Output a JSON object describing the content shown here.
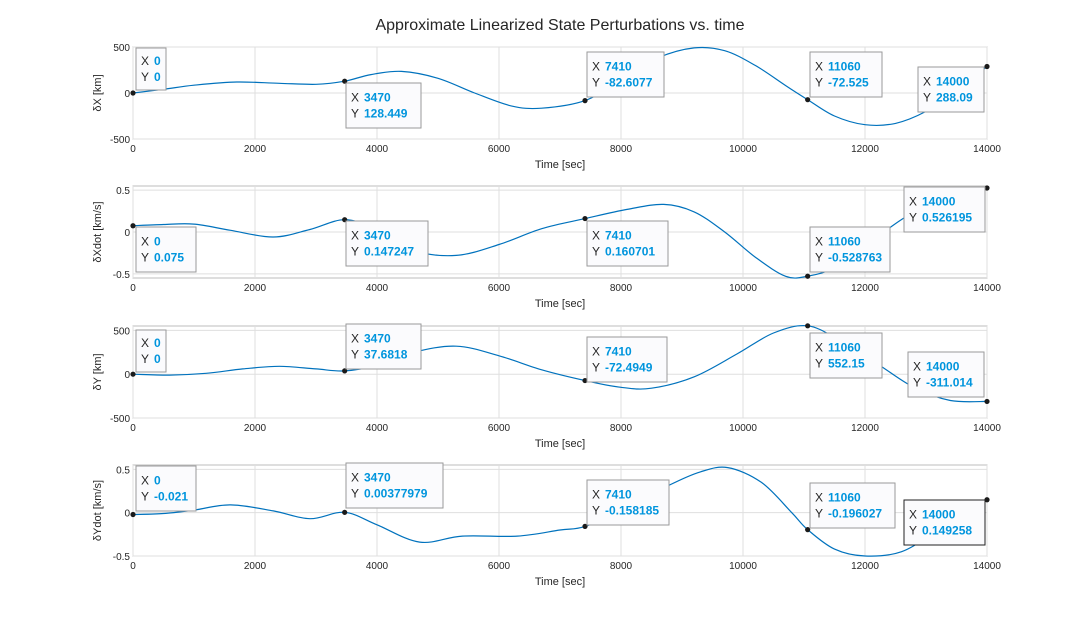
{
  "figure": {
    "title": "Approximate Linearized State Perturbations vs. time",
    "line_color": "#0072BD",
    "tip_value_color": "#0095DD",
    "marker_color": "#1a1a1a"
  },
  "chart_data": [
    {
      "type": "line",
      "xlabel": "Time [sec]",
      "ylabel": "δX [km]",
      "xlim": [
        0,
        14000
      ],
      "ylim": [
        -500,
        500
      ],
      "xticks": [
        0,
        2000,
        4000,
        6000,
        8000,
        10000,
        12000,
        14000
      ],
      "yticks": [
        -500,
        0,
        500
      ],
      "grid": true,
      "x": [
        0,
        500,
        1000,
        1700,
        2400,
        3000,
        3470,
        3900,
        4400,
        5000,
        5600,
        6200,
        6700,
        7410,
        8000,
        8600,
        9200,
        9700,
        10200,
        10700,
        11060,
        11500,
        12000,
        12500,
        13000,
        13500,
        14000
      ],
      "y": [
        0,
        40,
        85,
        120,
        105,
        95,
        128.449,
        200,
        235,
        160,
        0,
        -140,
        -165,
        -82.6077,
        140,
        380,
        490,
        460,
        300,
        80,
        -72.525,
        -250,
        -345,
        -330,
        -200,
        20,
        288.09
      ],
      "datatips": [
        {
          "x": "0",
          "y": "0"
        },
        {
          "x": "3470",
          "y": "128.449"
        },
        {
          "x": "7410",
          "y": "-82.6077"
        },
        {
          "x": "11060",
          "y": "-72.525"
        },
        {
          "x": "14000",
          "y": "288.09"
        }
      ]
    },
    {
      "type": "line",
      "xlabel": "Time [sec]",
      "ylabel": "δXdot [km/s]",
      "xlim": [
        0,
        14000
      ],
      "ylim": [
        -0.55,
        0.55
      ],
      "xticks": [
        0,
        2000,
        4000,
        6000,
        8000,
        10000,
        12000,
        14000
      ],
      "yticks": [
        -0.5,
        0,
        0.5
      ],
      "grid": true,
      "x": [
        0,
        500,
        1000,
        1600,
        2300,
        2900,
        3470,
        4000,
        4600,
        5300,
        6000,
        6700,
        7410,
        8100,
        8700,
        9200,
        9700,
        10200,
        10700,
        11060,
        11500,
        12000,
        12600,
        13200,
        13700,
        14000
      ],
      "y": [
        0.075,
        0.09,
        0.095,
        0.02,
        -0.06,
        0.03,
        0.147247,
        0.03,
        -0.22,
        -0.28,
        -0.15,
        0.04,
        0.160701,
        0.27,
        0.33,
        0.24,
        0.0,
        -0.3,
        -0.53,
        -0.528763,
        -0.43,
        -0.17,
        0.15,
        0.4,
        0.49,
        0.526195
      ],
      "datatips": [
        {
          "x": "0",
          "y": "0.075"
        },
        {
          "x": "3470",
          "y": "0.147247"
        },
        {
          "x": "7410",
          "y": "0.160701"
        },
        {
          "x": "11060",
          "y": "-0.528763"
        },
        {
          "x": "14000",
          "y": "0.526195"
        }
      ]
    },
    {
      "type": "line",
      "xlabel": "Time [sec]",
      "ylabel": "δY [km]",
      "xlim": [
        0,
        14000
      ],
      "ylim": [
        -500,
        550
      ],
      "xticks": [
        0,
        2000,
        4000,
        6000,
        8000,
        10000,
        12000,
        14000
      ],
      "yticks": [
        -500,
        0,
        500
      ],
      "grid": true,
      "x": [
        0,
        600,
        1200,
        1800,
        2400,
        3000,
        3470,
        4000,
        4600,
        5300,
        6000,
        6700,
        7410,
        8000,
        8500,
        9200,
        9900,
        10500,
        11060,
        11600,
        12200,
        12800,
        13400,
        14000
      ],
      "y": [
        0,
        -10,
        10,
        60,
        90,
        60,
        37.6818,
        100,
        250,
        320,
        210,
        50,
        -72.4949,
        -150,
        -160,
        -30,
        230,
        470,
        552.15,
        380,
        120,
        -150,
        -300,
        -311.014
      ],
      "datatips": [
        {
          "x": "0",
          "y": "0"
        },
        {
          "x": "3470",
          "y": "37.6818"
        },
        {
          "x": "7410",
          "y": "-72.4949"
        },
        {
          "x": "11060",
          "y": "552.15"
        },
        {
          "x": "14000",
          "y": "-311.014"
        }
      ]
    },
    {
      "type": "line",
      "xlabel": "Time [sec]",
      "ylabel": "δYdot [km/s]",
      "xlim": [
        0,
        14000
      ],
      "ylim": [
        -0.5,
        0.55
      ],
      "xticks": [
        0,
        2000,
        4000,
        6000,
        8000,
        10000,
        12000,
        14000
      ],
      "yticks": [
        -0.5,
        0,
        0.5
      ],
      "grid": true,
      "x": [
        0,
        500,
        1000,
        1600,
        2300,
        2900,
        3470,
        4000,
        4700,
        5400,
        6300,
        7000,
        7410,
        8100,
        8800,
        9300,
        9750,
        10300,
        10800,
        11060,
        11500,
        12000,
        12600,
        13200,
        14000
      ],
      "y": [
        -0.021,
        -0.01,
        0.03,
        0.09,
        0.02,
        -0.07,
        0.00377979,
        -0.14,
        -0.34,
        -0.27,
        -0.27,
        -0.2,
        -0.158185,
        0.05,
        0.32,
        0.47,
        0.52,
        0.35,
        0.0,
        -0.196027,
        -0.42,
        -0.5,
        -0.45,
        -0.2,
        0.149258
      ],
      "datatips": [
        {
          "x": "0",
          "y": "-0.021"
        },
        {
          "x": "3470",
          "y": "0.00377979"
        },
        {
          "x": "7410",
          "y": "-0.158185"
        },
        {
          "x": "11060",
          "y": "-0.196027"
        },
        {
          "x": "14000",
          "y": "0.149258"
        }
      ]
    }
  ]
}
